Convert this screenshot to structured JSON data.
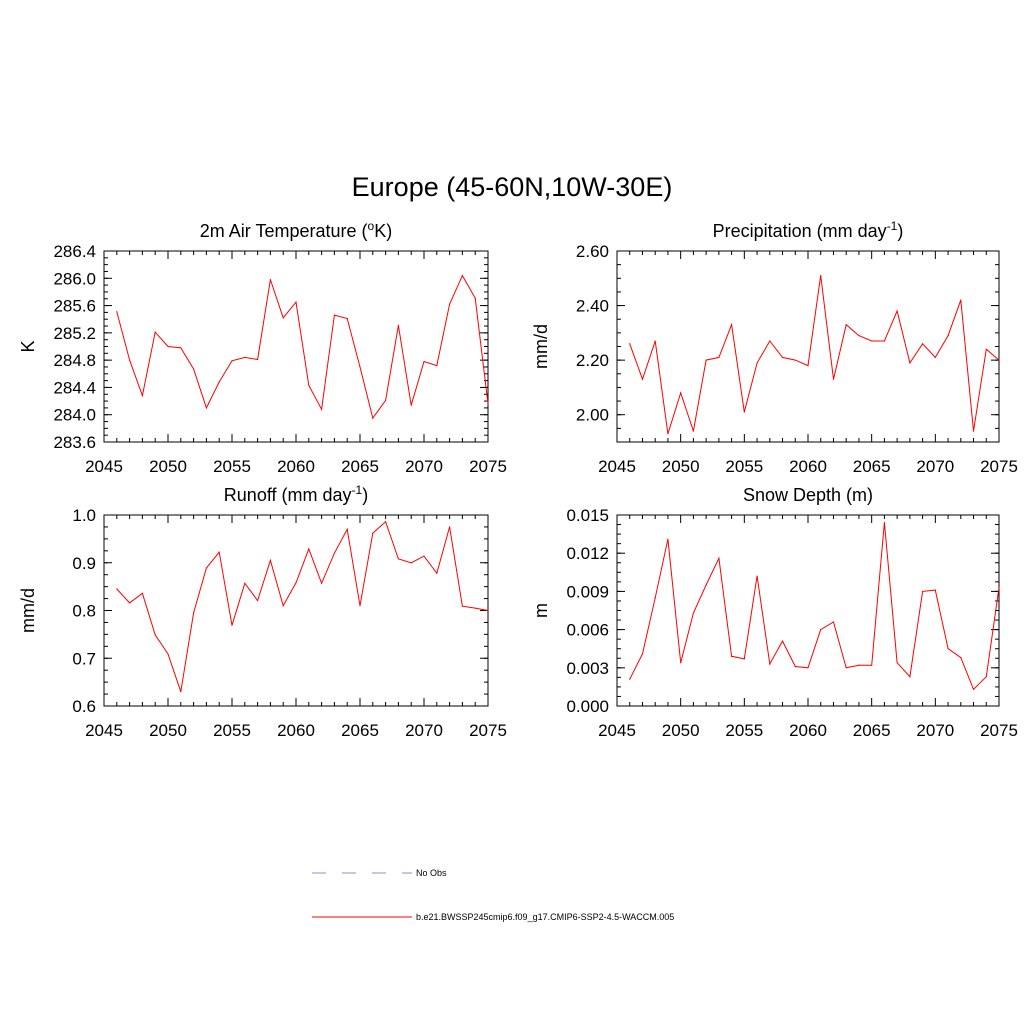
{
  "title": "Europe (45-60N,10W-30E)",
  "legend": [
    {
      "label": "No Obs",
      "color": "#8c8cd0",
      "dash": true
    },
    {
      "label": "b.e21.BWSSP245cmip6.f09_g17.CMIP6-SSP2-4.5-WACCM.005",
      "color": "#ff0000",
      "dash": false
    }
  ],
  "chart_data": [
    {
      "type": "line",
      "title": "2m Air Temperature (",
      "title_sup": "o",
      "title_end": "K)",
      "ylabel": "K",
      "xlabel": "",
      "xlim": [
        2045,
        2075
      ],
      "ylim": [
        283.6,
        286.4
      ],
      "xticks": [
        2045,
        2050,
        2055,
        2060,
        2065,
        2070,
        2075
      ],
      "xtick_labels": [
        "2045",
        "2050",
        "2055",
        "2060",
        "2065",
        "2070",
        "2075"
      ],
      "yticks": [
        283.6,
        284.0,
        284.4,
        284.8,
        285.2,
        285.6,
        286.0,
        286.4
      ],
      "ytick_labels": [
        "283.6",
        "284.0",
        "284.4",
        "284.8",
        "285.2",
        "285.6",
        "286.0",
        "286.4"
      ],
      "color": "#ff0000",
      "x": [
        2046,
        2047,
        2048,
        2049,
        2050,
        2051,
        2052,
        2053,
        2054,
        2055,
        2056,
        2057,
        2058,
        2059,
        2060,
        2061,
        2062,
        2063,
        2064,
        2065,
        2066,
        2067,
        2068,
        2069,
        2070,
        2071,
        2072,
        2073,
        2074,
        2075
      ],
      "values": [
        285.51,
        284.8,
        284.28,
        285.21,
        285.0,
        284.98,
        284.67,
        284.1,
        284.48,
        284.79,
        284.84,
        284.81,
        285.98,
        285.42,
        285.65,
        284.43,
        284.08,
        285.46,
        285.41,
        284.7,
        283.95,
        284.21,
        285.31,
        284.14,
        284.78,
        284.72,
        285.62,
        286.04,
        285.71,
        284.16
      ]
    },
    {
      "type": "line",
      "title": "Precipitation (mm day",
      "title_sup": "-1",
      "title_end": ")",
      "ylabel": "mm/d",
      "xlabel": "",
      "xlim": [
        2045,
        2075
      ],
      "ylim": [
        1.9,
        2.6
      ],
      "xticks": [
        2045,
        2050,
        2055,
        2060,
        2065,
        2070,
        2075
      ],
      "xtick_labels": [
        "2045",
        "2050",
        "2055",
        "2060",
        "2065",
        "2070",
        "2075"
      ],
      "yticks": [
        2.0,
        2.2,
        2.4,
        2.6
      ],
      "ytick_labels": [
        "2.00",
        "2.20",
        "2.40",
        "2.60"
      ],
      "color": "#ff0000",
      "x": [
        2046,
        2047,
        2048,
        2049,
        2050,
        2051,
        2052,
        2053,
        2054,
        2055,
        2056,
        2057,
        2058,
        2059,
        2060,
        2061,
        2062,
        2063,
        2064,
        2065,
        2066,
        2067,
        2068,
        2069,
        2070,
        2071,
        2072,
        2073,
        2074,
        2075
      ],
      "values": [
        2.26,
        2.13,
        2.27,
        1.93,
        2.08,
        1.94,
        2.2,
        2.21,
        2.33,
        2.01,
        2.19,
        2.27,
        2.21,
        2.2,
        2.18,
        2.51,
        2.13,
        2.33,
        2.29,
        2.27,
        2.27,
        2.38,
        2.19,
        2.26,
        2.21,
        2.29,
        2.42,
        1.94,
        2.24,
        2.2
      ]
    },
    {
      "type": "line",
      "title": "Runoff (mm day",
      "title_sup": "-1",
      "title_end": ")",
      "ylabel": "mm/d",
      "xlabel": "",
      "xlim": [
        2045,
        2075
      ],
      "ylim": [
        0.6,
        1.0
      ],
      "xticks": [
        2045,
        2050,
        2055,
        2060,
        2065,
        2070,
        2075
      ],
      "xtick_labels": [
        "2045",
        "2050",
        "2055",
        "2060",
        "2065",
        "2070",
        "2075"
      ],
      "yticks": [
        0.6,
        0.7,
        0.8,
        0.9,
        1.0
      ],
      "ytick_labels": [
        "0.6",
        "0.7",
        "0.8",
        "0.9",
        "1.0"
      ],
      "color": "#ff0000",
      "x": [
        2046,
        2047,
        2048,
        2049,
        2050,
        2051,
        2052,
        2053,
        2054,
        2055,
        2056,
        2057,
        2058,
        2059,
        2060,
        2061,
        2062,
        2063,
        2064,
        2065,
        2066,
        2067,
        2068,
        2069,
        2070,
        2071,
        2072,
        2073,
        2074,
        2075
      ],
      "values": [
        0.845,
        0.816,
        0.836,
        0.749,
        0.709,
        0.63,
        0.795,
        0.889,
        0.922,
        0.769,
        0.857,
        0.821,
        0.905,
        0.81,
        0.858,
        0.929,
        0.857,
        0.92,
        0.97,
        0.81,
        0.962,
        0.986,
        0.908,
        0.9,
        0.914,
        0.878,
        0.975,
        0.809,
        0.805,
        0.8
      ]
    },
    {
      "type": "line",
      "title": "Snow Depth (m)",
      "title_sup": "",
      "title_end": "",
      "ylabel": "m",
      "xlabel": "",
      "xlim": [
        2045,
        2075
      ],
      "ylim": [
        0.0,
        0.015
      ],
      "xticks": [
        2045,
        2050,
        2055,
        2060,
        2065,
        2070,
        2075
      ],
      "xtick_labels": [
        "2045",
        "2050",
        "2055",
        "2060",
        "2065",
        "2070",
        "2075"
      ],
      "yticks": [
        0.0,
        0.003,
        0.006,
        0.009,
        0.012,
        0.015
      ],
      "ytick_labels": [
        "0.000",
        "0.003",
        "0.006",
        "0.009",
        "0.012",
        "0.015"
      ],
      "color": "#ff0000",
      "x": [
        2046,
        2047,
        2048,
        2049,
        2050,
        2051,
        2052,
        2053,
        2054,
        2055,
        2056,
        2057,
        2058,
        2059,
        2060,
        2061,
        2062,
        2063,
        2064,
        2065,
        2066,
        2067,
        2068,
        2069,
        2070,
        2071,
        2072,
        2073,
        2074,
        2075
      ],
      "values": [
        0.0021,
        0.0041,
        0.0085,
        0.0131,
        0.0034,
        0.0073,
        0.0095,
        0.0116,
        0.0039,
        0.0037,
        0.0102,
        0.0033,
        0.0051,
        0.0031,
        0.003,
        0.006,
        0.0066,
        0.003,
        0.0032,
        0.0032,
        0.0144,
        0.0034,
        0.0023,
        0.009,
        0.0091,
        0.0045,
        0.0038,
        0.0013,
        0.0023,
        0.0093
      ]
    }
  ]
}
